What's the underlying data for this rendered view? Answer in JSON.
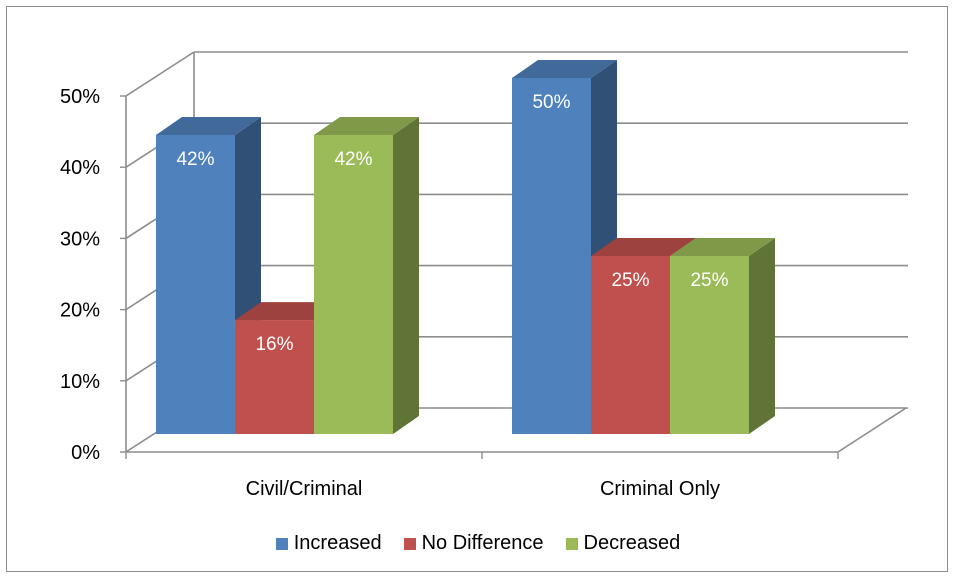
{
  "chart_data": {
    "type": "bar",
    "categories": [
      "Civil/Criminal",
      "Criminal Only"
    ],
    "series": [
      {
        "name": "Increased",
        "values": [
          42,
          50
        ],
        "color": "#4f81bd",
        "label_text": [
          "42%",
          "50%"
        ]
      },
      {
        "name": "No Difference",
        "values": [
          16,
          25
        ],
        "color": "#c0504d",
        "label_text": [
          "16%",
          "25%"
        ]
      },
      {
        "name": "Decreased",
        "values": [
          42,
          25
        ],
        "color": "#9bbb59",
        "label_text": [
          "42%",
          "25%"
        ]
      }
    ],
    "yticks": [
      "0%",
      "10%",
      "20%",
      "30%",
      "40%",
      "50%"
    ],
    "ylim": [
      0,
      50
    ],
    "grid": true,
    "style": "3d-clustered-column",
    "legend_position": "bottom"
  }
}
